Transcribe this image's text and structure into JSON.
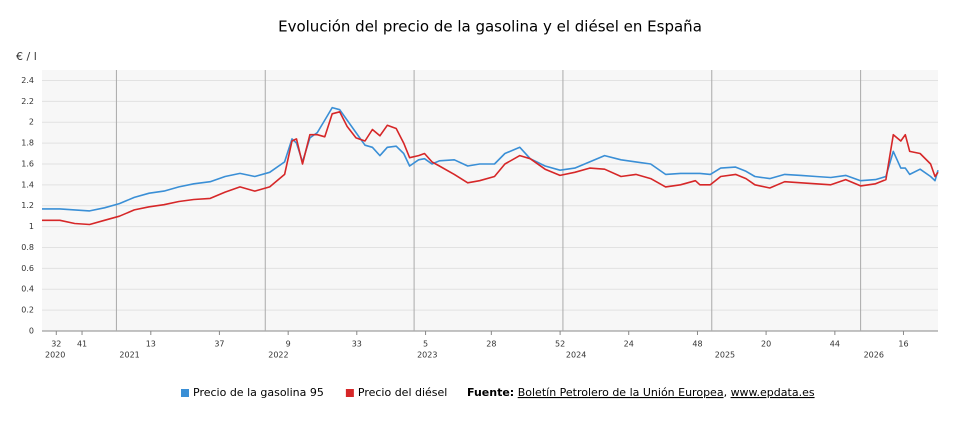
{
  "chart_data": {
    "type": "line",
    "title": "Evolución del precio de la gasolina y el diésel en España",
    "y_label": "€ / l",
    "x": [
      2020.5,
      2020.62,
      2020.72,
      2020.82,
      2020.92,
      2021.02,
      2021.12,
      2021.22,
      2021.32,
      2021.42,
      2021.52,
      2021.63,
      2021.73,
      2021.83,
      2021.93,
      2022.03,
      2022.13,
      2022.18,
      2022.21,
      2022.25,
      2022.3,
      2022.35,
      2022.4,
      2022.45,
      2022.5,
      2022.55,
      2022.61,
      2022.67,
      2022.72,
      2022.77,
      2022.82,
      2022.88,
      2022.93,
      2022.97,
      2023.03,
      2023.07,
      2023.12,
      2023.17,
      2023.27,
      2023.36,
      2023.44,
      2023.54,
      2023.61,
      2023.71,
      2023.78,
      2023.88,
      2023.98,
      2024.08,
      2024.18,
      2024.28,
      2024.39,
      2024.49,
      2024.59,
      2024.69,
      2024.79,
      2024.89,
      2024.92,
      2024.99,
      2025.06,
      2025.16,
      2025.23,
      2025.29,
      2025.39,
      2025.49,
      2025.6,
      2025.7,
      2025.8,
      2025.9,
      2026.0,
      2026.1,
      2026.17,
      2026.22,
      2026.27,
      2026.3,
      2026.33,
      2026.4,
      2026.47,
      2026.5,
      2026.52
    ],
    "series": [
      {
        "name": "Precio de la gasolina 95",
        "color": "#3a8fd6",
        "values": [
          1.17,
          1.17,
          1.16,
          1.15,
          1.18,
          1.22,
          1.28,
          1.32,
          1.34,
          1.38,
          1.41,
          1.43,
          1.48,
          1.51,
          1.48,
          1.52,
          1.62,
          1.84,
          1.8,
          1.62,
          1.85,
          1.9,
          2.02,
          2.14,
          2.12,
          2.02,
          1.9,
          1.78,
          1.76,
          1.68,
          1.76,
          1.77,
          1.7,
          1.58,
          1.64,
          1.65,
          1.6,
          1.63,
          1.64,
          1.58,
          1.6,
          1.6,
          1.7,
          1.76,
          1.65,
          1.58,
          1.54,
          1.56,
          1.62,
          1.68,
          1.64,
          1.62,
          1.6,
          1.5,
          1.51,
          1.51,
          1.51,
          1.5,
          1.56,
          1.57,
          1.53,
          1.48,
          1.46,
          1.5,
          1.49,
          1.48,
          1.47,
          1.49,
          1.44,
          1.45,
          1.48,
          1.72,
          1.56,
          1.56,
          1.5,
          1.55,
          1.48,
          1.44,
          1.54
        ]
      },
      {
        "name": "Precio del diésel",
        "color": "#d62728",
        "values": [
          1.06,
          1.06,
          1.03,
          1.02,
          1.06,
          1.1,
          1.16,
          1.19,
          1.21,
          1.24,
          1.26,
          1.27,
          1.33,
          1.38,
          1.34,
          1.38,
          1.5,
          1.82,
          1.84,
          1.6,
          1.88,
          1.88,
          1.86,
          2.08,
          2.1,
          1.96,
          1.85,
          1.82,
          1.93,
          1.87,
          1.97,
          1.94,
          1.8,
          1.66,
          1.68,
          1.7,
          1.62,
          1.58,
          1.5,
          1.42,
          1.44,
          1.48,
          1.6,
          1.68,
          1.65,
          1.55,
          1.49,
          1.52,
          1.56,
          1.55,
          1.48,
          1.5,
          1.46,
          1.38,
          1.4,
          1.44,
          1.4,
          1.4,
          1.48,
          1.5,
          1.46,
          1.4,
          1.37,
          1.43,
          1.42,
          1.41,
          1.4,
          1.45,
          1.39,
          1.41,
          1.45,
          1.88,
          1.82,
          1.88,
          1.72,
          1.7,
          1.6,
          1.48,
          1.52
        ]
      }
    ],
    "xlim": [
      2020.5,
      2026.52
    ],
    "xticks": [
      {
        "value": 2020.596,
        "label": "32"
      },
      {
        "value": 2020.769,
        "label": "41"
      },
      {
        "value": 2021.231,
        "label": "13"
      },
      {
        "value": 2021.692,
        "label": "37"
      },
      {
        "value": 2022.154,
        "label": "9"
      },
      {
        "value": 2022.615,
        "label": "33"
      },
      {
        "value": 2023.077,
        "label": "5"
      },
      {
        "value": 2023.519,
        "label": "28"
      },
      {
        "value": 2023.981,
        "label": "52"
      },
      {
        "value": 2024.442,
        "label": "24"
      },
      {
        "value": 2024.904,
        "label": "48"
      },
      {
        "value": 2025.365,
        "label": "20"
      },
      {
        "value": 2025.827,
        "label": "44"
      },
      {
        "value": 2026.288,
        "label": "16"
      }
    ],
    "year_ticks": [
      {
        "value": 2020.5,
        "label": "2020"
      },
      2021,
      2022,
      2023,
      2024,
      2025,
      2026
    ],
    "ylim": [
      0,
      2.5
    ],
    "yticks": [
      0,
      0.2,
      0.4,
      0.6,
      0.8,
      1,
      1.2,
      1.4,
      1.6,
      1.8,
      2,
      2.2,
      2.4
    ],
    "grid": true,
    "source": {
      "label": "Fuente:",
      "publisher": "Boletín Petrolero de la Unión Europea",
      "separator": ",",
      "site": "www.epdata.es"
    }
  }
}
